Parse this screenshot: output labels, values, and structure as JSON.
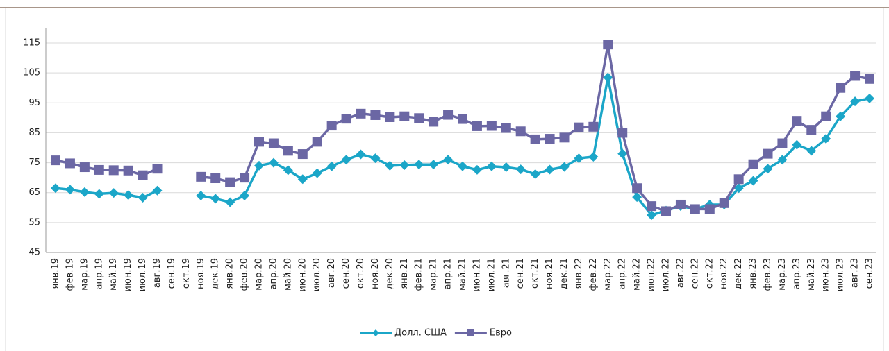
{
  "chart_data": {
    "type": "line",
    "categories": [
      "янв.19",
      "фев.19",
      "мар.19",
      "апр.19",
      "май.19",
      "июн.19",
      "июл.19",
      "авг.19",
      "сен.19",
      "окт.19",
      "ноя.19",
      "дек.19",
      "янв.20",
      "фев.20",
      "мар.20",
      "апр.20",
      "май.20",
      "июн.20",
      "июл.20",
      "авг.20",
      "сен.20",
      "окт.20",
      "ноя.20",
      "дек.20",
      "янв.21",
      "фев.21",
      "мар.21",
      "апр.21",
      "май.21",
      "июн.21",
      "июл.21",
      "авг.21",
      "сен.21",
      "окт.21",
      "ноя.21",
      "дек.21",
      "янв.22",
      "фев.22",
      "мар.22",
      "апр.22",
      "май.22",
      "июн.22",
      "июл.22",
      "авг.22",
      "сен.22",
      "окт.22",
      "ноя.22",
      "дек.22",
      "янв.23",
      "фев.23",
      "мар.23",
      "апр.23",
      "май.23",
      "июн.23",
      "июл.23",
      "авг.23",
      "сен.23"
    ],
    "series": [
      {
        "name": "Долл. США",
        "color": "#1ba6c8",
        "marker": "diamond",
        "values": [
          66.5,
          66,
          65.2,
          64.6,
          64.9,
          64.2,
          63.3,
          65.7,
          null,
          null,
          64,
          63,
          61.8,
          64,
          74,
          75,
          72.5,
          69.5,
          71.5,
          73.8,
          76,
          77.8,
          76.5,
          74,
          74.2,
          74.4,
          74.4,
          76,
          73.8,
          72.6,
          73.8,
          73.5,
          72.8,
          71.2,
          72.7,
          73.6,
          76.5,
          77,
          103.5,
          78,
          63.5,
          57.5,
          59,
          60.5,
          59.5,
          61,
          61,
          66.5,
          69,
          73,
          76,
          81,
          79,
          83,
          90.5,
          95.5,
          96.5
        ]
      },
      {
        "name": "Евро",
        "color": "#6b67a4",
        "marker": "square",
        "values": [
          75.8,
          74.8,
          73.5,
          72.6,
          72.5,
          72.4,
          70.8,
          73,
          null,
          null,
          70.3,
          69.8,
          68.5,
          70,
          82,
          81.5,
          79,
          77.9,
          82,
          87.4,
          89.7,
          91.4,
          90.9,
          90.2,
          90.5,
          89.9,
          88.7,
          91,
          89.6,
          87.2,
          87.3,
          86.6,
          85.5,
          82.8,
          83,
          83.4,
          86.8,
          87,
          114.5,
          85,
          66.5,
          60.5,
          58.8,
          61,
          59.5,
          59.5,
          61.5,
          69.5,
          74.5,
          78,
          81.5,
          89,
          86,
          90.5,
          100,
          104,
          103
        ]
      }
    ],
    "ylim": [
      45,
      115
    ],
    "yticks": [
      45,
      55,
      65,
      75,
      85,
      95,
      105,
      115
    ],
    "grid": true,
    "legend": "bottom"
  }
}
